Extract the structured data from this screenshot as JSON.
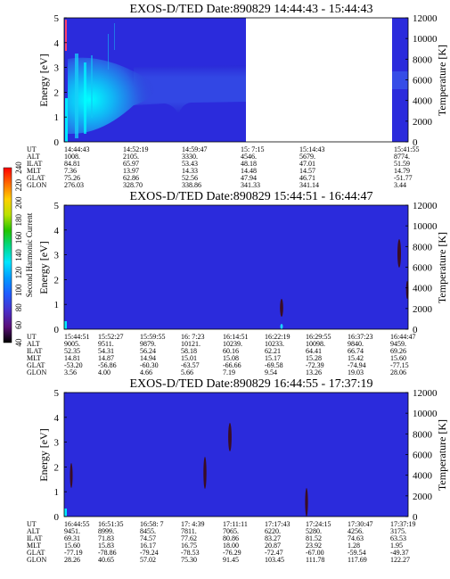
{
  "chart_data": [
    {
      "type": "heatmap",
      "title": "EXOS-D/TED   Date:890829  14:44:43 - 15:44:43",
      "ylabel_left": "Energy [eV]",
      "ylabel_right": "Temperature [K]",
      "left_ylim": [
        0,
        5
      ],
      "left_ticks": [
        "0",
        "1",
        "2",
        "3",
        "4",
        "5"
      ],
      "right_ylim": [
        0,
        12000
      ],
      "right_ticks": [
        "0",
        "2000",
        "4000",
        "6000",
        "8000",
        "10000",
        "12000"
      ],
      "data_extent": "14:44:43 to 15:14:43, data gap to 15:41:55",
      "features": [
        {
          "kind": "intense low-energy band",
          "from": "14:44:43",
          "to": "14:53:30",
          "energy_eV": [
            0,
            3
          ],
          "color": "#00e8ff"
        },
        {
          "kind": "enhanced band",
          "from": "14:53:30",
          "to": "15:14:43",
          "energy_eV": [
            0.8,
            3
          ],
          "color": "#2f3fd8"
        }
      ],
      "orbit_labels": [
        "UT",
        "ALT",
        "ILAT",
        "MLT",
        "GLAT",
        "GLON"
      ],
      "orbit_columns": [
        [
          "14:44:43",
          "1008.",
          "84.81",
          "7.36",
          "75.26",
          "276.03"
        ],
        [
          "14:52:19",
          "2105.",
          "65.97",
          "13.97",
          "62.86",
          "328.70"
        ],
        [
          "14:59:47",
          "3330.",
          "53.43",
          "14.33",
          "52.56",
          "338.86"
        ],
        [
          "15: 7:15",
          "4546.",
          "48.18",
          "14.48",
          "47.94",
          "341.33"
        ],
        [
          "15:14:43",
          "5679.",
          "47.01",
          "14.57",
          "46.71",
          "341.14"
        ],
        [
          "15:41:55",
          "8774.",
          "51.59",
          "14.79",
          "-51.77",
          "3.44"
        ]
      ]
    },
    {
      "type": "heatmap",
      "title": "EXOS-D/TED   Date:890829  15:44:51 - 16:44:47",
      "ylabel_left": "Energy [eV]",
      "ylabel_right": "Temperature [K]",
      "left_ylim": [
        0,
        5
      ],
      "left_ticks": [
        "0",
        "1",
        "2",
        "3",
        "4",
        "5"
      ],
      "right_ylim": [
        0,
        12000
      ],
      "right_ticks": [
        "0",
        "2000",
        "4000",
        "6000",
        "8000",
        "10000",
        "12000"
      ],
      "features": [
        {
          "kind": "narrow burst",
          "at": "16:22:19",
          "energy_eV": [
            0,
            1.9
          ]
        },
        {
          "kind": "narrow burst",
          "at": "16:44:30",
          "energy_eV": [
            2,
            3.8
          ]
        }
      ],
      "orbit_labels": [
        "UT",
        "ALT",
        "ILAT",
        "MLT",
        "GLAT",
        "GLON"
      ],
      "orbit_columns": [
        [
          "15:44:51",
          "9005.",
          "52.35",
          "14.81",
          "-53.20",
          "3.56"
        ],
        [
          "15:52:27",
          "9511.",
          "54.31",
          "14.87",
          "-56.86",
          "4.00"
        ],
        [
          "15:59:55",
          "9879.",
          "56.24",
          "14.94",
          "-60.30",
          "4.66"
        ],
        [
          "16: 7:23",
          "10121.",
          "58.18",
          "15.01",
          "-63.57",
          "5.66"
        ],
        [
          "16:14:51",
          "10239.",
          "60.16",
          "15.08",
          "-66.66",
          "7.19"
        ],
        [
          "16:22:19",
          "10233.",
          "62.21",
          "15.17",
          "-69.58",
          "9.54"
        ],
        [
          "16:29:55",
          "10098.",
          "64.41",
          "15.28",
          "-72.39",
          "13.26"
        ],
        [
          "16:37:23",
          "9840.",
          "66.74",
          "15.42",
          "-74.94",
          "19.03"
        ],
        [
          "16:44:47",
          "9459.",
          "69.26",
          "15.60",
          "-77.15",
          "28.06"
        ]
      ]
    },
    {
      "type": "heatmap",
      "title": "EXOS-D/TED   Date:890829  16:44:55 - 17:37:19",
      "ylabel_left": "Energy [eV]",
      "ylabel_right": "Temperature [K]",
      "left_ylim": [
        0,
        5
      ],
      "left_ticks": [
        "0",
        "1",
        "2",
        "3",
        "4",
        "5"
      ],
      "right_ylim": [
        0,
        12000
      ],
      "right_ticks": [
        "0",
        "2000",
        "4000",
        "6000",
        "8000",
        "10000",
        "12000"
      ],
      "features": [
        {
          "kind": "narrow burst",
          "at": "16:45:40",
          "energy_eV": [
            1.2,
            2.4
          ]
        },
        {
          "kind": "narrow burst",
          "at": "17: 4:39",
          "energy_eV": [
            0.8,
            2.2
          ]
        },
        {
          "kind": "narrow burst",
          "at": "17: 9:30",
          "energy_eV": [
            2.7,
            3.8
          ]
        },
        {
          "kind": "narrow burst",
          "at": "17:17:43",
          "energy_eV": [
            0,
            1.2
          ]
        }
      ],
      "orbit_labels": [
        "UT",
        "ALT",
        "ILAT",
        "MLT",
        "GLAT",
        "GLON"
      ],
      "orbit_columns": [
        [
          "16:44:55",
          "9451.",
          "69.31",
          "15.60",
          "-77.19",
          "28.26"
        ],
        [
          "16:51:35",
          "8999.",
          "71.83",
          "15.83",
          "-78.86",
          "40.65"
        ],
        [
          "16:58: 7",
          "8455.",
          "74.57",
          "16.17",
          "-79.24",
          "57.02"
        ],
        [
          "17: 4:39",
          "7811.",
          "77.62",
          "16.75",
          "-78.53",
          "75.30"
        ],
        [
          "17:11:11",
          "7065.",
          "80.86",
          "18.00",
          "-76.29",
          "91.45"
        ],
        [
          "17:17:43",
          "6220.",
          "83.27",
          "20.87",
          "-72.47",
          "103.45"
        ],
        [
          "17:24:15",
          "5280.",
          "81.52",
          "23.92",
          "-67.00",
          "111.78"
        ],
        [
          "17:30:47",
          "4256.",
          "74.63",
          "1.28",
          "-59.54",
          "117.69"
        ],
        [
          "17:37:19",
          "3175.",
          "63.53",
          "1.95",
          "-49.37",
          "122.27"
        ]
      ]
    }
  ],
  "colorbar": {
    "label": "Second Harmonic Current",
    "ticks": [
      "40",
      "60",
      "80",
      "100",
      "120",
      "140",
      "160",
      "180",
      "200",
      "220",
      "240"
    ],
    "colors": [
      "#000000",
      "#5a0f78",
      "#4a2ec8",
      "#1f5cff",
      "#009bff",
      "#00e6ff",
      "#00d98a",
      "#21c400",
      "#b9e100",
      "#ffd000",
      "#ff6a00",
      "#ff0000"
    ]
  },
  "colors": {
    "background": "#2b2bdc",
    "band": "#2f3fd8",
    "low": "#3a3ae8",
    "intense": "#00e8ff",
    "burst": "#3a0d24"
  }
}
